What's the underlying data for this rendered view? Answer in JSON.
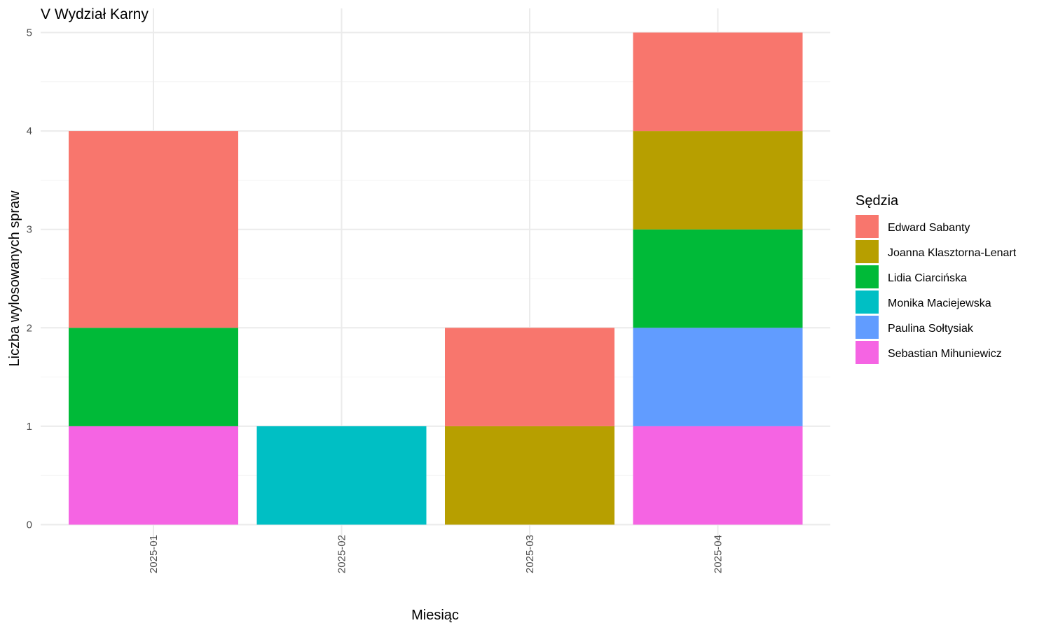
{
  "chart_data": {
    "type": "bar",
    "stacked": true,
    "title": "V Wydział Karny",
    "xlabel": "Miesiąc",
    "ylabel": "Liczba wylosowanych spraw",
    "legend_title": "Sędzia",
    "legend_position": "right",
    "categories": [
      "2025-01",
      "2025-02",
      "2025-03",
      "2025-04"
    ],
    "ylim": [
      0,
      5
    ],
    "yticks": [
      0,
      1,
      2,
      3,
      4,
      5
    ],
    "grid": true,
    "series": [
      {
        "name": "Edward Sabanty",
        "color": "#F8766D",
        "values": [
          2,
          0,
          1,
          1
        ]
      },
      {
        "name": "Joanna Klasztorna-Lenart",
        "color": "#B79F00",
        "values": [
          0,
          0,
          1,
          1
        ]
      },
      {
        "name": "Lidia Ciarcińska",
        "color": "#00BA38",
        "values": [
          1,
          0,
          0,
          1
        ]
      },
      {
        "name": "Monika Maciejewska",
        "color": "#00BFC4",
        "values": [
          0,
          1,
          0,
          0
        ]
      },
      {
        "name": "Paulina Sołtysiak",
        "color": "#619CFF",
        "values": [
          0,
          0,
          0,
          1
        ]
      },
      {
        "name": "Sebastian Mihuniewicz",
        "color": "#F564E3",
        "values": [
          1,
          0,
          0,
          1
        ]
      }
    ]
  }
}
